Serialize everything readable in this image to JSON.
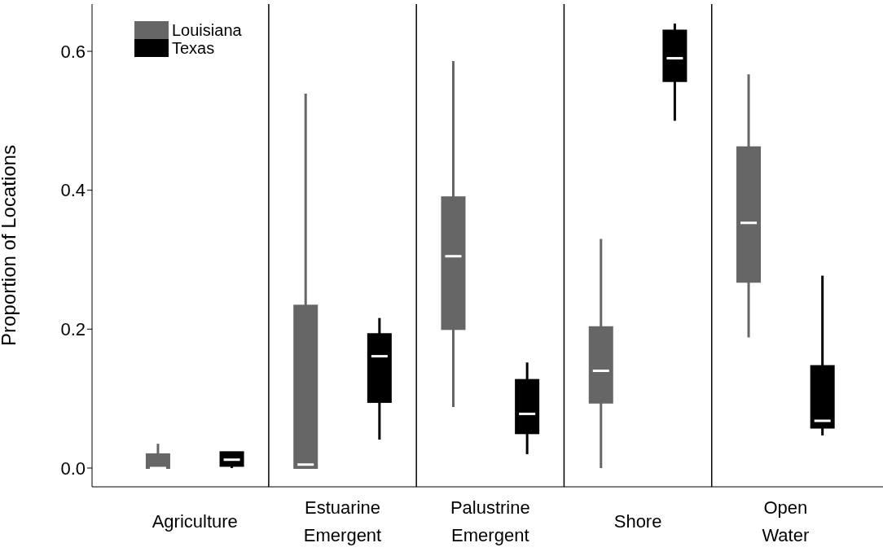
{
  "chart_data": {
    "type": "box",
    "categories": [
      "Agriculture",
      "Estuarine Emergent",
      "Palustrine Emergent",
      "Shore",
      "Open Water"
    ],
    "ylabel": "Proportion of Locations",
    "ylim": [
      -0.027,
      0.668
    ],
    "yticks": [
      {
        "value": 0,
        "label": "0.0"
      },
      {
        "value": 0.2,
        "label": "0.2"
      },
      {
        "value": 0.4,
        "label": "0.4"
      },
      {
        "value": 0.6,
        "label": "0.6"
      }
    ],
    "legend": "top left",
    "series": [
      {
        "name": "Louisiana",
        "color": "#666666",
        "boxes": [
          {
            "low": 0,
            "q1": 0,
            "median": 0,
            "q3": 0.02,
            "high": 0.035
          },
          {
            "low": 0,
            "q1": 0,
            "median": 0.005,
            "q3": 0.234,
            "high": 0.539
          },
          {
            "low": 0.088,
            "q1": 0.2,
            "median": 0.305,
            "q3": 0.39,
            "high": 0.586
          },
          {
            "low": 0,
            "q1": 0.094,
            "median": 0.14,
            "q3": 0.203,
            "high": 0.33
          },
          {
            "low": 0.188,
            "q1": 0.268,
            "median": 0.353,
            "q3": 0.462,
            "high": 0.567
          }
        ]
      },
      {
        "name": "Texas",
        "color": "#000000",
        "boxes": [
          {
            "low": 0,
            "q1": 0.003,
            "median": 0.012,
            "q3": 0.023,
            "high": 0.023
          },
          {
            "low": 0.041,
            "q1": 0.095,
            "median": 0.161,
            "q3": 0.193,
            "high": 0.216
          },
          {
            "low": 0.02,
            "q1": 0.05,
            "median": 0.078,
            "q3": 0.127,
            "high": 0.152
          },
          {
            "low": 0.5,
            "q1": 0.557,
            "median": 0.59,
            "q3": 0.63,
            "high": 0.64
          },
          {
            "low": 0.047,
            "q1": 0.058,
            "median": 0.068,
            "q3": 0.147,
            "high": 0.277
          }
        ]
      }
    ]
  }
}
